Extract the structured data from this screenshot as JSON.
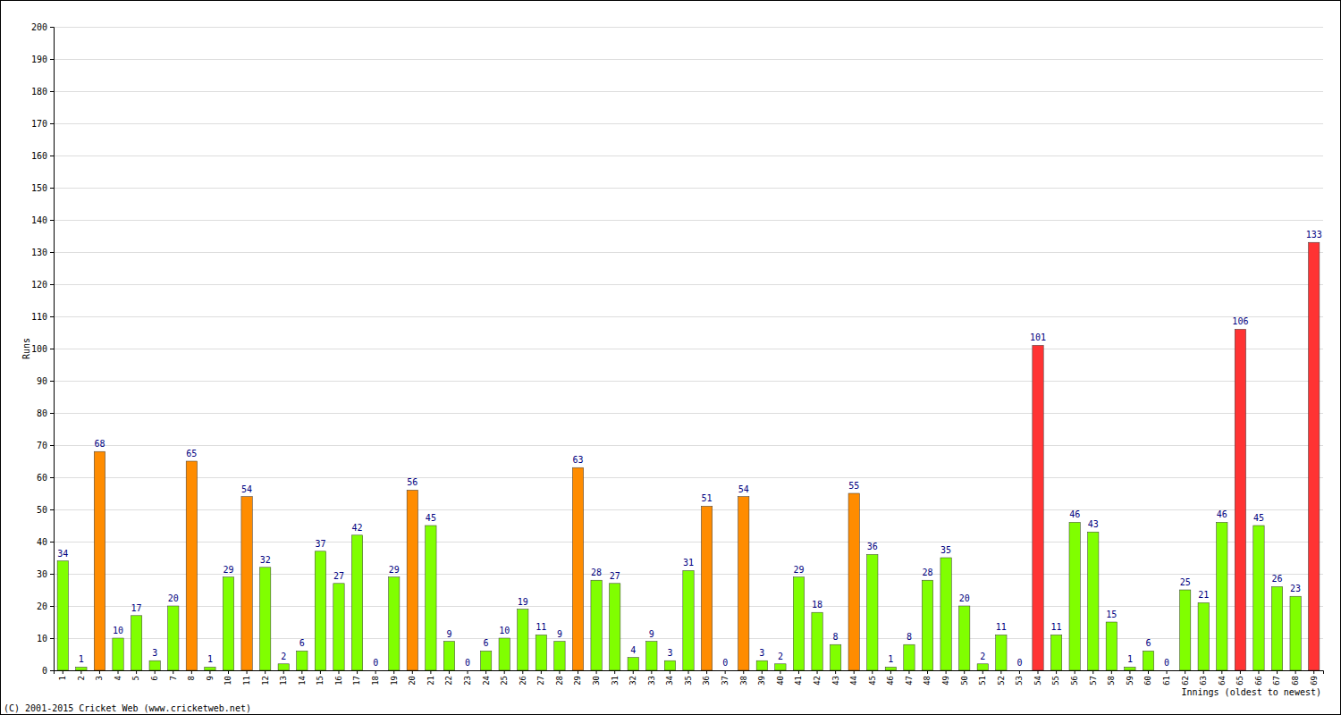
{
  "chart_data": {
    "type": "bar",
    "x_label": "Innings (oldest to newest)",
    "y_label": "Runs",
    "annotations": [
      "(C) 2001-2015 Cricket Web (www.cricketweb.net)"
    ],
    "categories": [
      "1",
      "2",
      "3",
      "4",
      "5",
      "6",
      "7",
      "8",
      "9",
      "10",
      "11",
      "12",
      "13",
      "14",
      "15",
      "16",
      "17",
      "18",
      "19",
      "20",
      "21",
      "22",
      "23",
      "24",
      "25",
      "26",
      "27",
      "28",
      "29",
      "30",
      "31",
      "32",
      "33",
      "34",
      "35",
      "36",
      "37",
      "38",
      "39",
      "40",
      "41",
      "42",
      "43",
      "44",
      "45",
      "46",
      "47",
      "48",
      "49",
      "50",
      "51",
      "52",
      "53",
      "54",
      "55",
      "56",
      "57",
      "58",
      "59",
      "60",
      "61",
      "62",
      "63",
      "64",
      "65",
      "66",
      "67",
      "68",
      "69"
    ],
    "values": [
      34,
      1,
      68,
      10,
      17,
      3,
      20,
      65,
      1,
      29,
      54,
      32,
      2,
      6,
      37,
      27,
      42,
      0,
      29,
      56,
      45,
      9,
      0,
      6,
      10,
      19,
      11,
      9,
      63,
      28,
      27,
      4,
      9,
      3,
      31,
      51,
      0,
      54,
      3,
      2,
      29,
      18,
      8,
      55,
      36,
      1,
      8,
      28,
      35,
      20,
      2,
      11,
      0,
      101,
      11,
      46,
      43,
      15,
      1,
      6,
      0,
      25,
      21,
      46,
      106,
      45,
      26,
      23,
      133
    ],
    "colors": [
      "#80ff00",
      "#80ff00",
      "#ff8c00",
      "#80ff00",
      "#80ff00",
      "#80ff00",
      "#80ff00",
      "#ff8c00",
      "#80ff00",
      "#80ff00",
      "#ff8c00",
      "#80ff00",
      "#80ff00",
      "#80ff00",
      "#80ff00",
      "#80ff00",
      "#80ff00",
      "#80ff00",
      "#80ff00",
      "#ff8c00",
      "#80ff00",
      "#80ff00",
      "#80ff00",
      "#80ff00",
      "#80ff00",
      "#80ff00",
      "#80ff00",
      "#80ff00",
      "#ff8c00",
      "#80ff00",
      "#80ff00",
      "#80ff00",
      "#80ff00",
      "#80ff00",
      "#80ff00",
      "#ff8c00",
      "#80ff00",
      "#ff8c00",
      "#80ff00",
      "#80ff00",
      "#80ff00",
      "#80ff00",
      "#80ff00",
      "#ff8c00",
      "#80ff00",
      "#80ff00",
      "#80ff00",
      "#80ff00",
      "#80ff00",
      "#80ff00",
      "#80ff00",
      "#80ff00",
      "#80ff00",
      "#ff3333",
      "#80ff00",
      "#80ff00",
      "#80ff00",
      "#80ff00",
      "#80ff00",
      "#80ff00",
      "#80ff00",
      "#80ff00",
      "#80ff00",
      "#80ff00",
      "#ff3333",
      "#80ff00",
      "#80ff00",
      "#80ff00",
      "#ff3333"
    ],
    "ylim": [
      0,
      200
    ],
    "yticks": [
      0,
      10,
      20,
      30,
      40,
      50,
      60,
      70,
      80,
      90,
      100,
      110,
      120,
      130,
      140,
      150,
      160,
      170,
      180,
      190,
      200
    ],
    "grid": true,
    "data_labels": true
  }
}
